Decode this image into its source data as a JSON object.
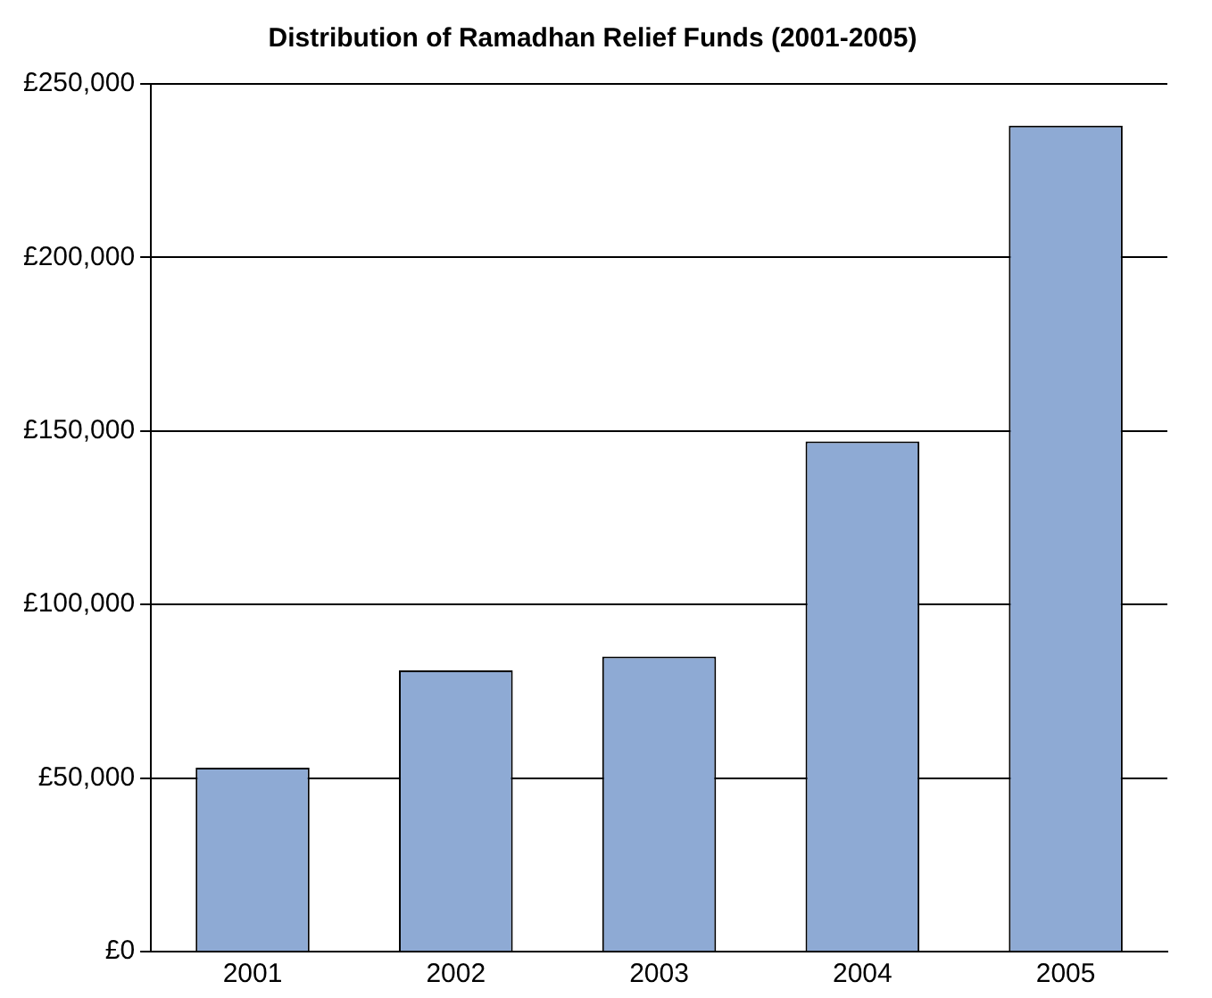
{
  "chart_data": {
    "type": "bar",
    "title": "Distribution of Ramadhan Relief Funds (2001-2005)",
    "categories": [
      "2001",
      "2002",
      "2003",
      "2004",
      "2005"
    ],
    "values": [
      53000,
      81000,
      85000,
      147000,
      238000
    ],
    "color": "#8eaad4",
    "ylim": [
      0,
      250000
    ],
    "yticks": [
      {
        "value": 0,
        "label": "£0"
      },
      {
        "value": 50000,
        "label": "£50,000"
      },
      {
        "value": 100000,
        "label": "£100,000"
      },
      {
        "value": 150000,
        "label": "£150,000"
      },
      {
        "value": 200000,
        "label": "£200,000"
      },
      {
        "value": 250000,
        "label": "£250,000"
      }
    ],
    "grid": "y",
    "legend": false
  }
}
